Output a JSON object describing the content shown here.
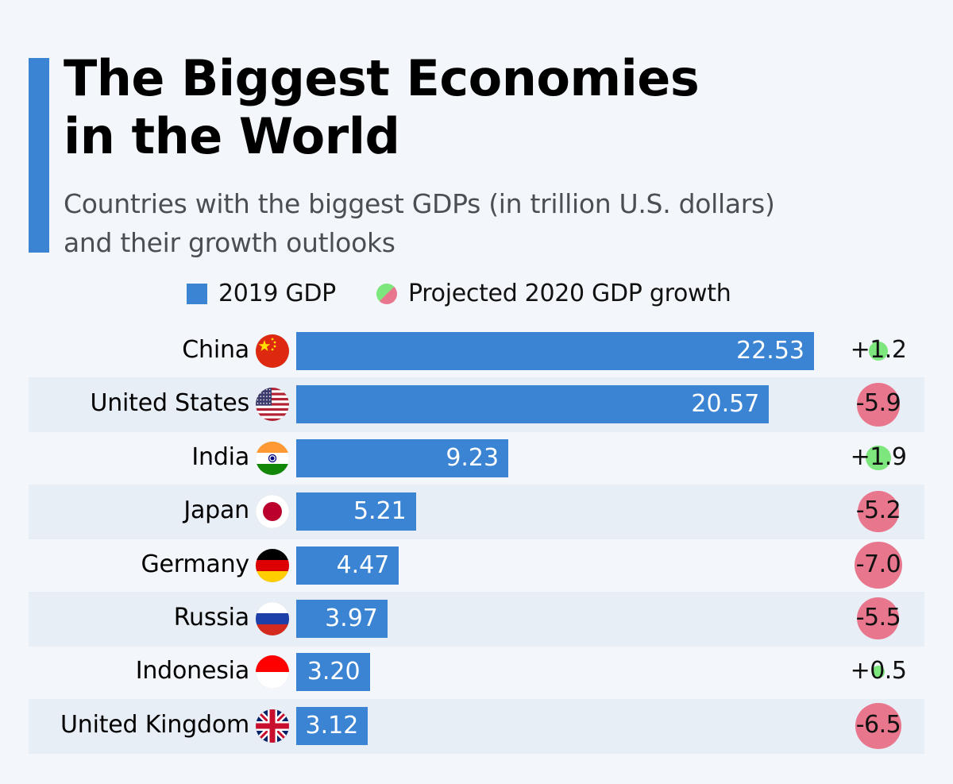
{
  "header": {
    "title_line1": "The Biggest Economies",
    "title_line2": "in the World",
    "subtitle_line1": "Countries with the biggest GDPs (in trillion U.S. dollars)",
    "subtitle_line2": "and their growth outlooks"
  },
  "colors": {
    "accent": "#3a84d3",
    "bar": "#3a84d3",
    "positive_growth": "#7de67d",
    "negative_growth": "#e8778e",
    "stripe": "#e8eef6",
    "background": "#f3f7fb"
  },
  "chart_data": {
    "type": "bar",
    "orientation": "horizontal",
    "title": "The Biggest Economies in the World",
    "subtitle": "Countries with the biggest GDPs (in trillion U.S. dollars) and their growth outlooks",
    "legend": {
      "placement": "top",
      "entries": [
        "2019 GDP",
        "Projected 2020 GDP growth"
      ]
    },
    "categories": [
      "China",
      "United States",
      "India",
      "Japan",
      "Germany",
      "Russia",
      "Indonesia",
      "United Kingdom"
    ],
    "flags": [
      "china-flag-icon",
      "usa-flag-icon",
      "india-flag-icon",
      "japan-flag-icon",
      "germany-flag-icon",
      "russia-flag-icon",
      "indonesia-flag-icon",
      "uk-flag-icon"
    ],
    "series": [
      {
        "name": "2019 GDP",
        "unit": "trillion U.S. dollars",
        "values": [
          22.53,
          20.57,
          9.23,
          5.21,
          4.47,
          3.97,
          3.2,
          3.12
        ],
        "labels": [
          "22.53",
          "20.57",
          "9.23",
          "5.21",
          "4.47",
          "3.97",
          "3.20",
          "3.12"
        ]
      },
      {
        "name": "Projected 2020 GDP growth",
        "unit": "percent",
        "values": [
          1.2,
          -5.9,
          1.9,
          -5.2,
          -7.0,
          -5.5,
          0.5,
          -6.5
        ],
        "labels": [
          "+1.2",
          "-5.9",
          "+1.9",
          "-5.2",
          "-7.0",
          "-5.5",
          "+0.5",
          "-6.5"
        ]
      }
    ],
    "xlabel": "",
    "ylabel": "",
    "grid": false
  }
}
